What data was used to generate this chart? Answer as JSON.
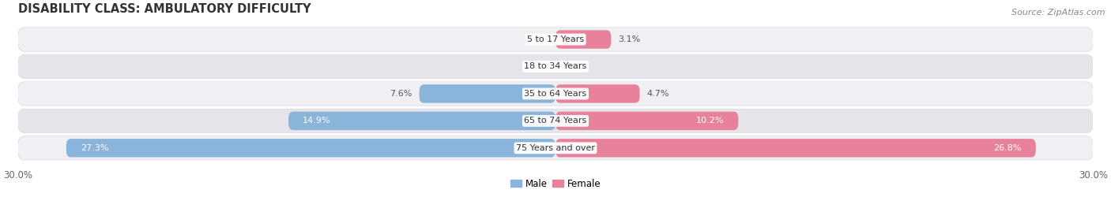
{
  "title": "DISABILITY CLASS: AMBULATORY DIFFICULTY",
  "source": "Source: ZipAtlas.com",
  "categories": [
    "5 to 17 Years",
    "18 to 34 Years",
    "35 to 64 Years",
    "65 to 74 Years",
    "75 Years and over"
  ],
  "male_values": [
    0.0,
    0.0,
    7.6,
    14.9,
    27.3
  ],
  "female_values": [
    3.1,
    0.0,
    4.7,
    10.2,
    26.8
  ],
  "male_color": "#8ab4d9",
  "female_color": "#e8829a",
  "male_color_large": "#7aafd4",
  "female_color_large": "#e8729a",
  "row_bg_light": "#f0f0f4",
  "row_bg_dark": "#e4e4ea",
  "row_border": "#d8d8e0",
  "xlim": 30.0,
  "title_fontsize": 10.5,
  "label_fontsize": 8.0,
  "tick_fontsize": 8.5,
  "source_fontsize": 8.0,
  "legend_fontsize": 8.5,
  "inside_label_threshold": 10.0
}
